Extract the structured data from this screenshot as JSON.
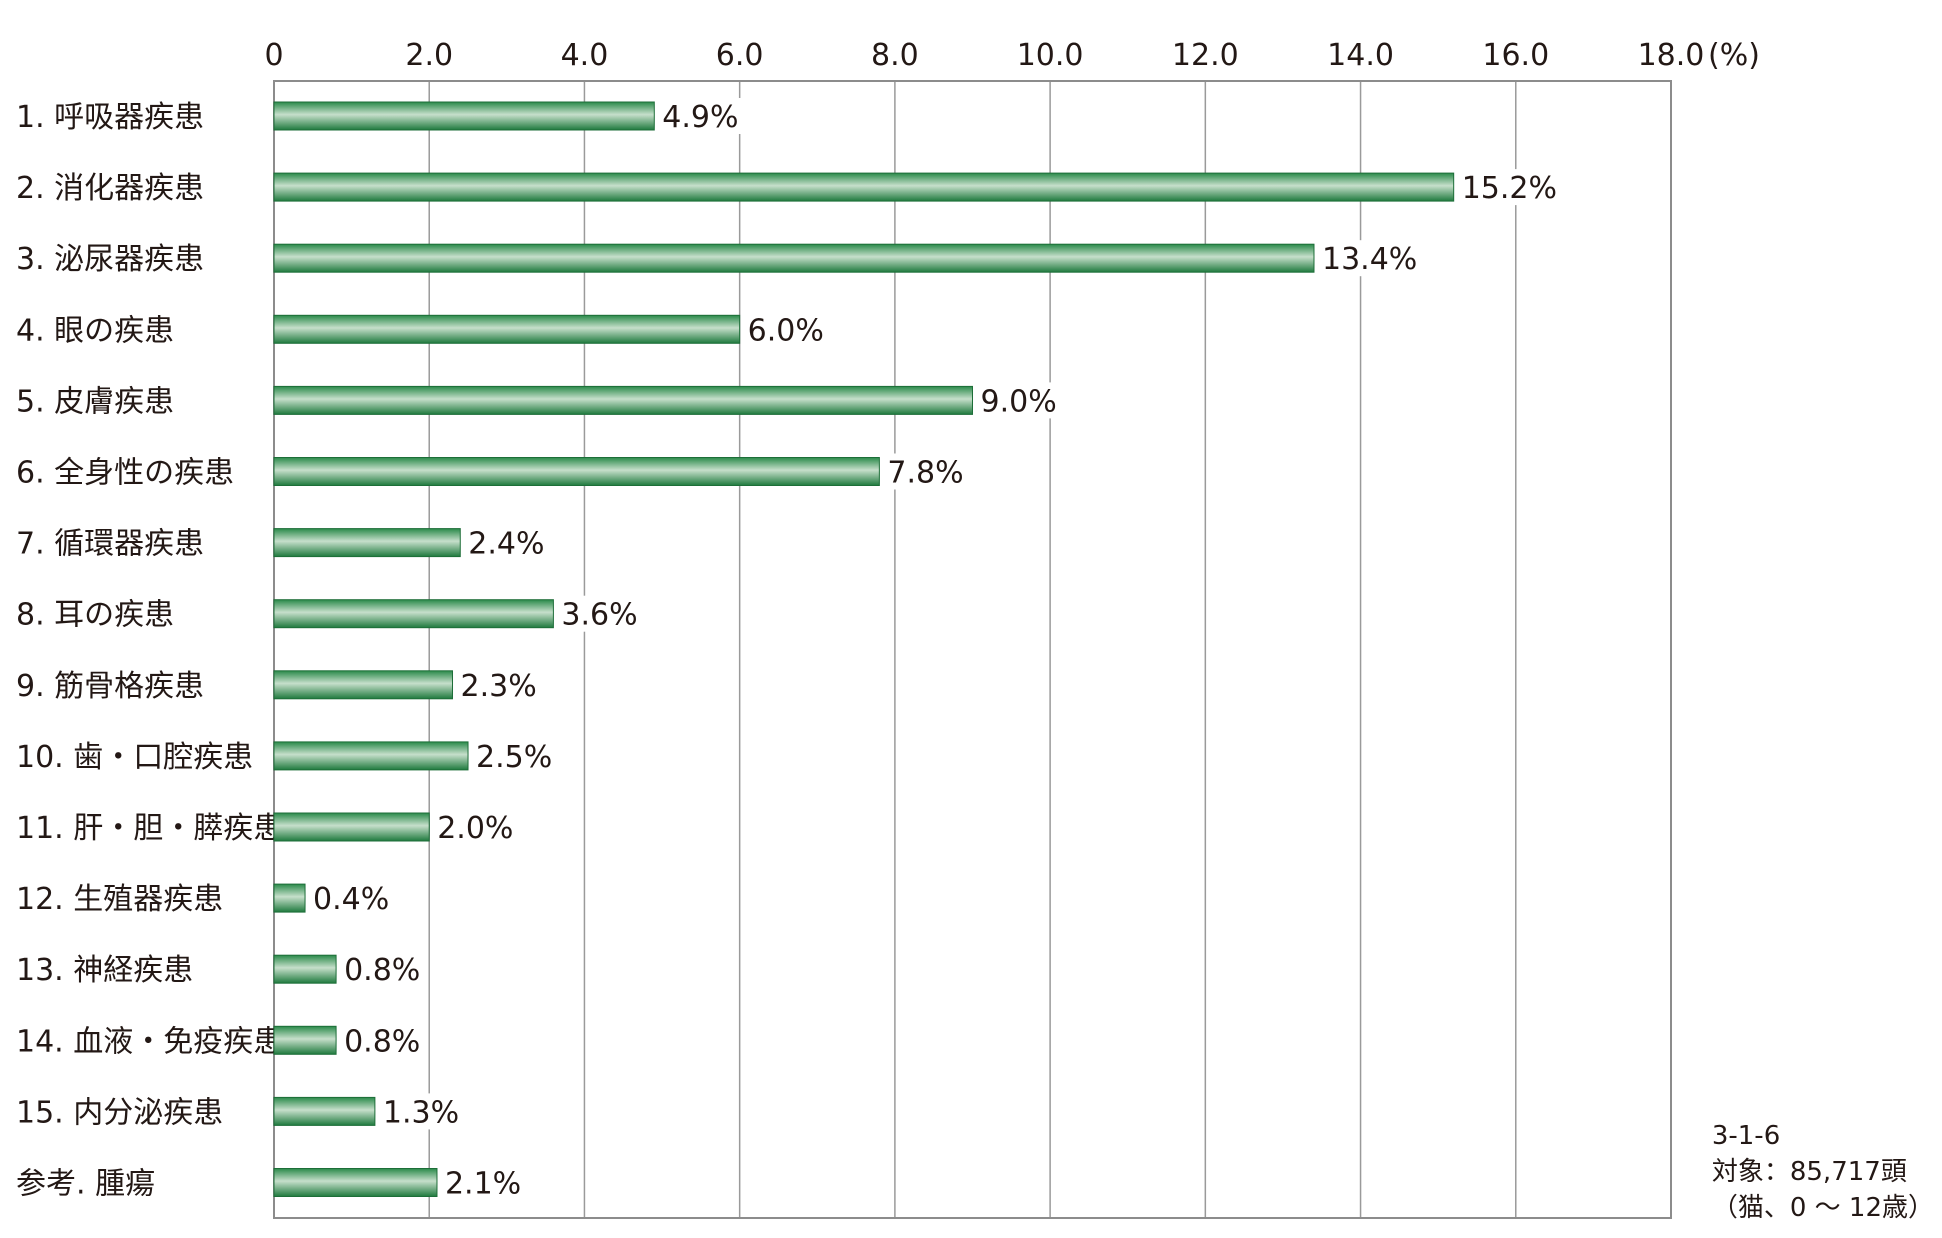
{
  "chart_data": {
    "type": "bar",
    "orientation": "horizontal",
    "categories": [
      "1. 呼吸器疾患",
      "2. 消化器疾患",
      "3. 泌尿器疾患",
      "4. 眼の疾患",
      "5. 皮膚疾患",
      "6. 全身性の疾患",
      "7. 循環器疾患",
      "8. 耳の疾患",
      "9. 筋骨格疾患",
      "10. 歯・口腔疾患",
      "11. 肝・胆・膵疾患",
      "12. 生殖器疾患",
      "13. 神経疾患",
      "14. 血液・免疫疾患",
      "15. 内分泌疾患",
      "参考. 腫瘍"
    ],
    "values": [
      4.9,
      15.2,
      13.4,
      6.0,
      9.0,
      7.8,
      2.4,
      3.6,
      2.3,
      2.5,
      2.0,
      0.4,
      0.8,
      0.8,
      1.3,
      2.1
    ],
    "value_labels": [
      "4.9%",
      "15.2%",
      "13.4%",
      "6.0%",
      "9.0%",
      "7.8%",
      "2.4%",
      "3.6%",
      "2.3%",
      "2.5%",
      "2.0%",
      "0.4%",
      "0.8%",
      "0.8%",
      "1.3%",
      "2.1%"
    ],
    "xlim": [
      0,
      18
    ],
    "x_ticks": [
      "0",
      "2.0",
      "4.0",
      "6.0",
      "8.0",
      "10.0",
      "12.0",
      "14.0",
      "16.0",
      "18.0"
    ],
    "x_unit": "(%)",
    "grid": true,
    "axis_position": "top",
    "bar_color": "#2e8b4e"
  },
  "note": {
    "code": "3-1-6",
    "subject": "対象：85,717頭",
    "scope": "（猫、0 ～ 12歳）"
  }
}
